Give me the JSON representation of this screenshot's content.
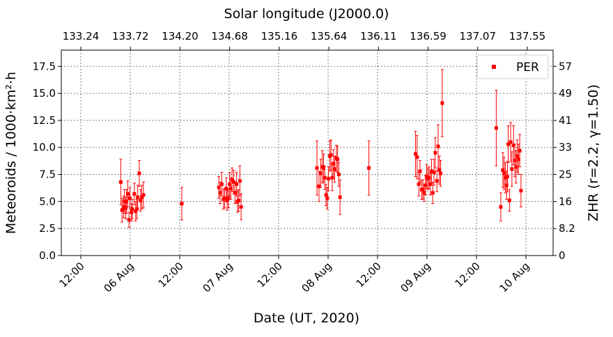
{
  "chart_data": {
    "type": "scatter",
    "title_top": "Solar longitude (J2000.0)",
    "xlabel": "Date (UT, 2020)",
    "ylabel": "Meteoroids / 1000·km²·h",
    "ylabel_right": "ZHR (r=2.2, γ=1.50)",
    "grid": true,
    "legend_position": "top-right",
    "x_tick_labels": [
      "12:00",
      "06 Aug",
      "12:00",
      "07 Aug",
      "12:00",
      "08 Aug",
      "12:00",
      "09 Aug",
      "12:00",
      "10 Aug"
    ],
    "x_tick_hours": [
      -12,
      0,
      12,
      24,
      36,
      48,
      60,
      72,
      84,
      96
    ],
    "top_tick_labels": [
      "133.24",
      "133.72",
      "134.20",
      "134.68",
      "135.16",
      "135.64",
      "136.11",
      "136.59",
      "137.07",
      "137.55"
    ],
    "y_ticks": [
      "0.0",
      "2.5",
      "5.0",
      "7.5",
      "10.0",
      "12.5",
      "15.0",
      "17.5"
    ],
    "y_tick_values": [
      0,
      2.5,
      5,
      7.5,
      10,
      12.5,
      15,
      17.5
    ],
    "ylim": [
      0,
      19
    ],
    "right_ticks": [
      "0",
      "8.2",
      "16",
      "25",
      "33",
      "41",
      "49",
      "57"
    ],
    "right_tick_values": [
      0,
      2.5,
      5,
      7.5,
      10,
      12.5,
      15,
      17.5
    ],
    "series": [
      {
        "name": "PER",
        "color": "#ff0000",
        "points": [
          [
            -2.3,
            6.8,
            2.1
          ],
          [
            -2.0,
            4.2,
            1.1
          ],
          [
            -1.6,
            4.5,
            1.0
          ],
          [
            -1.4,
            5.0,
            1.1
          ],
          [
            -1.1,
            4.4,
            1.0
          ],
          [
            -0.9,
            5.0,
            1.1
          ],
          [
            -0.6,
            5.7,
            1.2
          ],
          [
            -0.3,
            3.3,
            0.7
          ],
          [
            -0.1,
            5.3,
            1.0
          ],
          [
            0.3,
            4.0,
            0.8
          ],
          [
            0.5,
            4.3,
            0.9
          ],
          [
            1.0,
            5.7,
            1.0
          ],
          [
            1.3,
            4.1,
            0.9
          ],
          [
            1.6,
            4.3,
            0.9
          ],
          [
            1.8,
            5.4,
            1.1
          ],
          [
            2.2,
            7.6,
            1.2
          ],
          [
            2.5,
            5.1,
            1.0
          ],
          [
            2.8,
            5.4,
            1.1
          ],
          [
            3.2,
            5.6,
            1.2
          ],
          [
            12.5,
            4.8,
            1.5
          ],
          [
            21.5,
            6.3,
            1.0
          ],
          [
            21.8,
            5.8,
            1.0
          ],
          [
            22.2,
            6.6,
            1.1
          ],
          [
            22.6,
            5.2,
            0.9
          ],
          [
            22.9,
            5.3,
            0.9
          ],
          [
            23.3,
            6.2,
            1.0
          ],
          [
            23.5,
            5.1,
            0.9
          ],
          [
            23.8,
            5.3,
            0.9
          ],
          [
            24.1,
            6.6,
            1.1
          ],
          [
            24.4,
            6.2,
            1.0
          ],
          [
            24.7,
            7.0,
            1.1
          ],
          [
            25.1,
            6.8,
            1.1
          ],
          [
            25.4,
            5.8,
            1.0
          ],
          [
            25.8,
            6.6,
            1.1
          ],
          [
            26.0,
            5.0,
            1.0
          ],
          [
            26.3,
            5.1,
            1.0
          ],
          [
            26.6,
            6.9,
            1.4
          ],
          [
            26.9,
            4.5,
            1.2
          ],
          [
            45.3,
            8.1,
            2.5
          ],
          [
            45.8,
            6.4,
            1.4
          ],
          [
            46.2,
            7.6,
            1.3
          ],
          [
            46.6,
            8.2,
            1.5
          ],
          [
            46.9,
            8.1,
            1.3
          ],
          [
            47.2,
            7.2,
            1.1
          ],
          [
            47.5,
            5.6,
            1.0
          ],
          [
            47.8,
            5.3,
            1.0
          ],
          [
            48.1,
            7.1,
            1.1
          ],
          [
            48.4,
            9.2,
            1.4
          ],
          [
            48.7,
            9.3,
            1.4
          ],
          [
            49.0,
            7.2,
            1.2
          ],
          [
            49.3,
            8.5,
            1.3
          ],
          [
            49.6,
            8.0,
            1.2
          ],
          [
            50.0,
            9.0,
            1.2
          ],
          [
            50.3,
            8.9,
            1.2
          ],
          [
            50.6,
            7.5,
            1.1
          ],
          [
            50.9,
            5.4,
            1.6
          ],
          [
            57.9,
            8.1,
            2.5
          ],
          [
            69.2,
            9.4,
            2.1
          ],
          [
            69.6,
            9.1,
            2.0
          ],
          [
            70.0,
            6.6,
            1.1
          ],
          [
            70.3,
            7.8,
            1.0
          ],
          [
            70.7,
            6.1,
            0.9
          ],
          [
            71.0,
            6.1,
            0.9
          ],
          [
            71.3,
            5.8,
            0.8
          ],
          [
            71.6,
            6.5,
            0.9
          ],
          [
            71.9,
            7.3,
            1.1
          ],
          [
            72.2,
            7.1,
            1.0
          ],
          [
            72.5,
            7.2,
            1.0
          ],
          [
            72.8,
            6.6,
            1.0
          ],
          [
            73.1,
            7.8,
            1.1
          ],
          [
            73.4,
            5.8,
            1.0
          ],
          [
            73.7,
            7.7,
            1.2
          ],
          [
            74.0,
            9.5,
            1.4
          ],
          [
            74.4,
            6.9,
            1.0
          ],
          [
            74.7,
            10.1,
            2.0
          ],
          [
            75.0,
            7.9,
            1.3
          ],
          [
            75.3,
            7.6,
            1.2
          ],
          [
            75.7,
            14.1,
            3.1
          ],
          [
            88.8,
            11.8,
            3.5
          ],
          [
            89.9,
            4.5,
            1.3
          ],
          [
            90.4,
            7.9,
            1.6
          ],
          [
            90.7,
            7.6,
            1.5
          ],
          [
            91.0,
            7.2,
            1.4
          ],
          [
            91.3,
            6.5,
            1.3
          ],
          [
            91.5,
            7.3,
            1.4
          ],
          [
            91.7,
            10.3,
            1.7
          ],
          [
            92.0,
            5.1,
            1.0
          ],
          [
            92.3,
            10.5,
            1.8
          ],
          [
            92.6,
            8.0,
            1.6
          ],
          [
            93.0,
            10.2,
            1.8
          ],
          [
            93.3,
            8.8,
            1.5
          ],
          [
            93.6,
            8.2,
            1.5
          ],
          [
            93.9,
            9.2,
            1.5
          ],
          [
            94.2,
            8.9,
            1.4
          ],
          [
            94.5,
            9.7,
            1.5
          ],
          [
            94.8,
            6.0,
            1.5
          ]
        ]
      }
    ]
  }
}
